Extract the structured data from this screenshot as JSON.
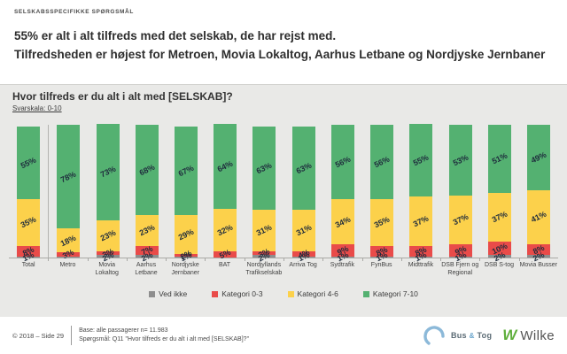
{
  "header": {
    "kicker": "SELSKABSSPECIFIKKE SPØRGSMÅL",
    "headline_line1": "55% er alt i alt tilfreds med det selskab, de har rejst med.",
    "headline_line2": "Tilfredsheden er højest for Metroen, Movia Lokaltog, Aarhus Letbane og Nordjyske Jernbaner"
  },
  "chart": {
    "title": "Hvor tilfreds er du alt i alt med [SELSKAB]?",
    "subtitle": "Svarskala: 0-10"
  },
  "chart_data": {
    "type": "bar",
    "stacked": true,
    "ylim": [
      0,
      100
    ],
    "unit": "%",
    "grid": false,
    "legend_position": "bottom",
    "categories": [
      "Total",
      "Metro",
      "Movia Lokaltog",
      "Aarhus Letbane",
      "Nordjyske Jernbaner",
      "BAT",
      "Nordjyllands Trafikselskab",
      "Arriva Tog",
      "Sydtrafik",
      "FynBus",
      "Midttrafik",
      "DSB Fjern og Regional",
      "DSB S-tog",
      "Movia Busser"
    ],
    "series": [
      {
        "name": "Kategori 7-10",
        "color": "#54b171",
        "values": [
          55,
          78,
          73,
          68,
          67,
          64,
          63,
          63,
          56,
          56,
          55,
          53,
          51,
          49
        ]
      },
      {
        "name": "Kategori 4-6",
        "color": "#fcd14b",
        "values": [
          35,
          18,
          23,
          23,
          29,
          32,
          31,
          31,
          34,
          35,
          37,
          37,
          37,
          41
        ]
      },
      {
        "name": "Kategori 0-3",
        "color": "#e94b49",
        "values": [
          8,
          3,
          3,
          7,
          2,
          5,
          3,
          4,
          9,
          8,
          8,
          9,
          10,
          8
        ]
      },
      {
        "name": "Ved ikke",
        "color": "#8e8e8e",
        "values": [
          1,
          1,
          2,
          2,
          1,
          0,
          2,
          1,
          1,
          1,
          1,
          1,
          2,
          2
        ],
        "labels": [
          "1%",
          "",
          "2%",
          "2%",
          "1%",
          "",
          "2%",
          "1%",
          "1%",
          "1%",
          "1%",
          "1%",
          "2%",
          "2%"
        ]
      }
    ],
    "legend": [
      {
        "label": "Ved ikke",
        "color": "#8e8e8e"
      },
      {
        "label": "Kategori 0-3",
        "color": "#e94b49"
      },
      {
        "label": "Kategori 4-6",
        "color": "#fcd14b"
      },
      {
        "label": "Kategori 7-10",
        "color": "#54b171"
      }
    ]
  },
  "footer": {
    "copyright": "© 2018 – Side 29",
    "base": "Base: alle passagerer n= 11.983",
    "question": "Spørgsmål: Q11 \"Hvor tilfreds er du alt i alt med [SELSKAB]?\"",
    "logo_bus_tog": {
      "word1": "Bus",
      "amp": "&",
      "word2": "Tog"
    },
    "logo_wilke": {
      "mark": "W",
      "text": "Wilke"
    }
  }
}
